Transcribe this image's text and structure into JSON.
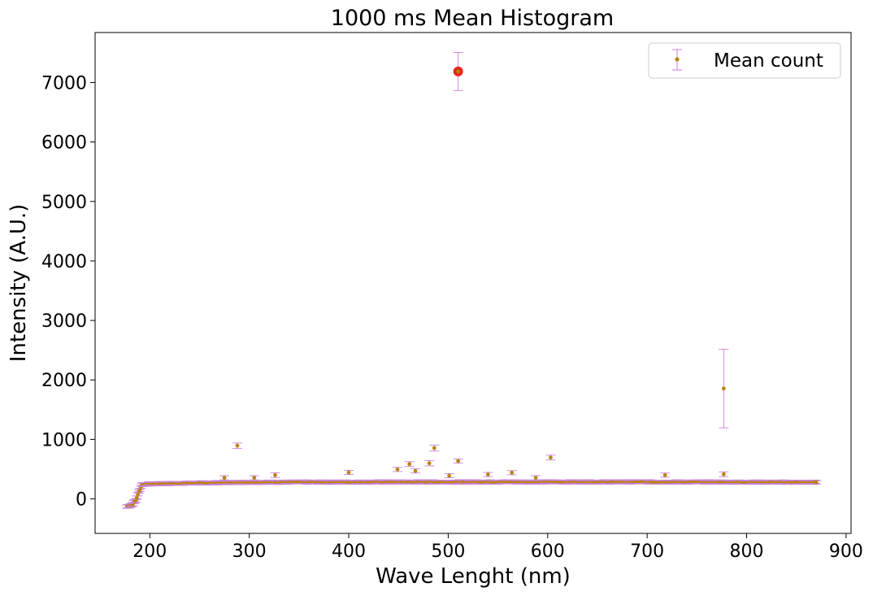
{
  "chart_data": {
    "type": "scatter",
    "title": "1000 ms Mean Histogram",
    "xlabel": "Wave Lenght (nm)",
    "ylabel": "Intensity (A.U.)",
    "xlim": [
      145,
      905
    ],
    "ylim": [
      -580,
      7840
    ],
    "xticks": [
      200,
      300,
      400,
      500,
      600,
      700,
      800,
      900
    ],
    "yticks": [
      0,
      1000,
      2000,
      3000,
      4000,
      5000,
      6000,
      7000
    ],
    "grid": false,
    "legend": {
      "position": "top-right",
      "entries": [
        "Mean count"
      ]
    },
    "colors": {
      "marker": "#b8860b",
      "errorbar": "#cc7fe0",
      "highlight": "#e8221a"
    },
    "series": [
      {
        "name": "Mean count",
        "baseline": {
          "x_start": 177,
          "x_end": 870,
          "step": 1.0,
          "ramp": [
            [
              177,
              -130
            ],
            [
              182,
              -100
            ],
            [
              186,
              -20
            ],
            [
              189,
              120
            ],
            [
              192,
              240
            ],
            [
              197,
              250
            ],
            [
              230,
              262
            ],
            [
              300,
              280
            ],
            [
              500,
              285
            ],
            [
              700,
              285
            ],
            [
              870,
              280
            ]
          ],
          "noise": 20,
          "error": 28
        },
        "points": [
          {
            "x": 288,
            "y": 895,
            "err": 45
          },
          {
            "x": 275,
            "y": 355,
            "err": 35
          },
          {
            "x": 305,
            "y": 355,
            "err": 35
          },
          {
            "x": 326,
            "y": 400,
            "err": 40
          },
          {
            "x": 400,
            "y": 445,
            "err": 35
          },
          {
            "x": 449,
            "y": 495,
            "err": 35
          },
          {
            "x": 461,
            "y": 585,
            "err": 40
          },
          {
            "x": 467,
            "y": 470,
            "err": 35
          },
          {
            "x": 481,
            "y": 600,
            "err": 45
          },
          {
            "x": 486,
            "y": 855,
            "err": 50
          },
          {
            "x": 501,
            "y": 390,
            "err": 35
          },
          {
            "x": 510,
            "y": 635,
            "err": 35
          },
          {
            "x": 510,
            "y": 7185,
            "err": 320,
            "highlight": true
          },
          {
            "x": 540,
            "y": 410,
            "err": 35
          },
          {
            "x": 564,
            "y": 440,
            "err": 35
          },
          {
            "x": 588,
            "y": 355,
            "err": 35
          },
          {
            "x": 603,
            "y": 695,
            "err": 40
          },
          {
            "x": 718,
            "y": 400,
            "err": 35
          },
          {
            "x": 777,
            "y": 1855,
            "err": 660
          },
          {
            "x": 777,
            "y": 415,
            "err": 40
          }
        ]
      }
    ]
  }
}
